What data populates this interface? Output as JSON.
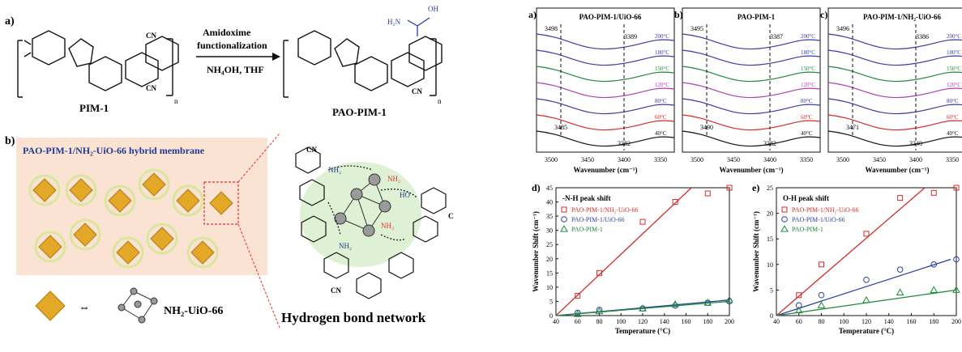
{
  "scheme": {
    "label_a": "a)",
    "label_b": "b)",
    "pim1": "PIM-1",
    "pao": "PAO-PIM-1",
    "n1": "n",
    "n2": "n",
    "arrow_top1": "Amidoxime",
    "arrow_top2": "functionalization",
    "arrow_bottom": "NH₄OH, THF",
    "cn": "CN",
    "h2n": "H₂N",
    "oh": "OH",
    "membrane_title": "PAO-PIM-1/NH₂-UiO-66 hybrid membrane",
    "mof_name": "NH₂-UiO-66",
    "hbond": "Hydrogen bond network",
    "nh2": "NH₂",
    "ho": "HO",
    "o": "O"
  },
  "ir_panels": [
    {
      "letter": "a)",
      "title": "PAO-PIM-1/UiO-66",
      "peaks_top": [
        "3498",
        "3389"
      ],
      "peaks_bottom": [
        "3485",
        "3382"
      ],
      "temps": [
        "200°C",
        "180°C",
        "150°C",
        "120°C",
        "80°C",
        "60°C",
        "40°C"
      ]
    },
    {
      "letter": "b)",
      "title": "PAO-PIM-1",
      "peaks_top": [
        "3495",
        "3387"
      ],
      "peaks_bottom": [
        "3490",
        "3382"
      ],
      "temps": [
        "200°C",
        "180°C",
        "150°C",
        "120°C",
        "80°C",
        "60°C",
        "40°C"
      ]
    },
    {
      "letter": "c)",
      "title": "PAO-PIM-1/NH₂-UiO-66",
      "peaks_top": [
        "3496",
        "3386"
      ],
      "peaks_bottom": [
        "3471",
        "3340"
      ],
      "temps": [
        "200°C",
        "180°C",
        "150°C",
        "120°C",
        "80°C",
        "60°C",
        "40°C"
      ]
    }
  ],
  "ir_axis": {
    "xlabel": "Wavenumber (cm⁻¹)",
    "ticks": [
      "3500",
      "3450",
      "3400",
      "3350"
    ]
  },
  "chart_data": [
    {
      "type": "scatter",
      "panel": "d)",
      "title": "-N-H peak shift",
      "xlabel": "Temperature (°C)",
      "ylabel": "Wavenumber Shift (cm⁻¹)",
      "xlim": [
        40,
        200
      ],
      "ylim": [
        0,
        45
      ],
      "xticks": [
        "40",
        "60",
        "80",
        "100",
        "120",
        "140",
        "160",
        "180",
        "200"
      ],
      "yticks": [
        "0",
        "5",
        "10",
        "15",
        "20",
        "25",
        "30",
        "35",
        "40",
        "45"
      ],
      "series": [
        {
          "name": "PAO-PIM-1/NH₂-UiO-66",
          "color": "#d62b2b",
          "marker": "square",
          "x": [
            60,
            80,
            120,
            150,
            180,
            200
          ],
          "y": [
            7,
            15,
            33,
            40,
            43,
            45
          ],
          "fit": [
            [
              40,
              0
            ],
            [
              165,
              47
            ]
          ]
        },
        {
          "name": "PAO-PIM-1/UiO-66",
          "color": "#2b3fa0",
          "marker": "circle",
          "x": [
            60,
            80,
            120,
            150,
            180,
            200
          ],
          "y": [
            1,
            2,
            2.5,
            3.5,
            4.5,
            5
          ],
          "fit": [
            [
              40,
              0
            ],
            [
              200,
              5.5
            ]
          ]
        },
        {
          "name": "PAO-PIM-1",
          "color": "#1f8a3a",
          "marker": "triangle",
          "x": [
            60,
            80,
            120,
            150,
            180,
            200
          ],
          "y": [
            0.5,
            1.5,
            2.5,
            4,
            4.5,
            5.5
          ],
          "fit": [
            [
              40,
              0
            ],
            [
              200,
              5
            ]
          ]
        }
      ]
    },
    {
      "type": "scatter",
      "panel": "e)",
      "title": "O-H peak shift",
      "xlabel": "Temperature (°C)",
      "ylabel": "Wavenumber Shift (cm⁻¹)",
      "xlim": [
        40,
        200
      ],
      "ylim": [
        0,
        25
      ],
      "xticks": [
        "40",
        "60",
        "80",
        "100",
        "120",
        "140",
        "160",
        "180",
        "200"
      ],
      "yticks": [
        "0",
        "5",
        "10",
        "15",
        "20",
        "25"
      ],
      "series": [
        {
          "name": "PAO-PIM-1/NH₂-UiO-66",
          "color": "#d62b2b",
          "marker": "square",
          "x": [
            60,
            80,
            120,
            150,
            180,
            200
          ],
          "y": [
            4,
            10,
            16,
            23,
            24,
            25
          ],
          "fit": [
            [
              40,
              0
            ],
            [
              172,
              26
            ]
          ]
        },
        {
          "name": "PAO-PIM-1/UiO-66",
          "color": "#2b3fa0",
          "marker": "circle",
          "x": [
            60,
            80,
            120,
            150,
            180,
            200
          ],
          "y": [
            2,
            4,
            7,
            9,
            10,
            11
          ],
          "fit": [
            [
              40,
              0
            ],
            [
              195,
              11
            ]
          ]
        },
        {
          "name": "PAO-PIM-1",
          "color": "#1f8a3a",
          "marker": "triangle",
          "x": [
            60,
            80,
            120,
            150,
            180,
            200
          ],
          "y": [
            1,
            2,
            3,
            4.5,
            5,
            5
          ],
          "fit": [
            [
              40,
              0
            ],
            [
              200,
              5
            ]
          ]
        }
      ]
    }
  ]
}
